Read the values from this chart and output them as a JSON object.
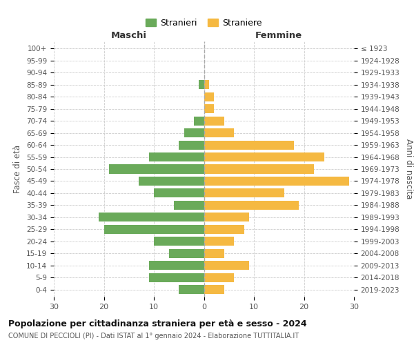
{
  "age_groups": [
    "0-4",
    "5-9",
    "10-14",
    "15-19",
    "20-24",
    "25-29",
    "30-34",
    "35-39",
    "40-44",
    "45-49",
    "50-54",
    "55-59",
    "60-64",
    "65-69",
    "70-74",
    "75-79",
    "80-84",
    "85-89",
    "90-94",
    "95-99",
    "100+"
  ],
  "birth_years": [
    "2019-2023",
    "2014-2018",
    "2009-2013",
    "2004-2008",
    "1999-2003",
    "1994-1998",
    "1989-1993",
    "1984-1988",
    "1979-1983",
    "1974-1978",
    "1969-1973",
    "1964-1968",
    "1959-1963",
    "1954-1958",
    "1949-1953",
    "1944-1948",
    "1939-1943",
    "1934-1938",
    "1929-1933",
    "1924-1928",
    "≤ 1923"
  ],
  "maschi": [
    5,
    11,
    11,
    7,
    10,
    20,
    21,
    6,
    10,
    13,
    19,
    11,
    5,
    4,
    2,
    0,
    0,
    1,
    0,
    0,
    0
  ],
  "femmine": [
    4,
    6,
    9,
    4,
    6,
    8,
    9,
    19,
    16,
    29,
    22,
    24,
    18,
    6,
    4,
    2,
    2,
    1,
    0,
    0,
    0
  ],
  "male_color": "#6aaa5a",
  "female_color": "#f5b942",
  "background_color": "#ffffff",
  "grid_color": "#cccccc",
  "title": "Popolazione per cittadinanza straniera per età e sesso - 2024",
  "subtitle": "COMUNE DI PECCIOLI (PI) - Dati ISTAT al 1° gennaio 2024 - Elaborazione TUTTITALIA.IT",
  "legend_male": "Stranieri",
  "legend_female": "Straniere",
  "xlabel_left": "Maschi",
  "xlabel_right": "Femmine",
  "ylabel_left": "Fasce di età",
  "ylabel_right": "Anni di nascita",
  "xlim": 30
}
